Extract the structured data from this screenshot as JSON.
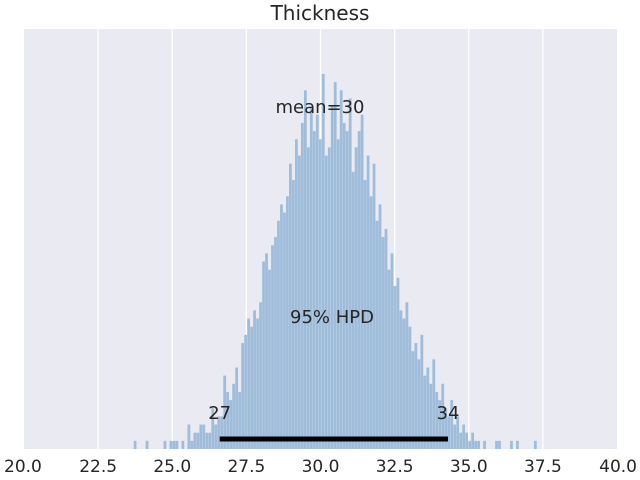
{
  "chart_data": {
    "type": "bar",
    "title": "Thickness",
    "xlabel": "",
    "ylabel": "",
    "xlim": [
      20.0,
      40.0
    ],
    "xticks": [
      "20.0",
      "22.5",
      "25.0",
      "27.5",
      "30.0",
      "32.5",
      "35.0",
      "37.5",
      "40.0"
    ],
    "xtick_values": [
      20.0,
      22.5,
      25.0,
      27.5,
      30.0,
      32.5,
      35.0,
      37.5,
      40.0
    ],
    "grid": true,
    "y_axis_visible": false,
    "bin_range": [
      23.7,
      37.3
    ],
    "counts": [
      1,
      0,
      0,
      0,
      1,
      0,
      0,
      0,
      0,
      0,
      1,
      0,
      1,
      1,
      1,
      0,
      1,
      0,
      3,
      1,
      2,
      2,
      3,
      3,
      2,
      2,
      5,
      3,
      4,
      4,
      9,
      7,
      6,
      8,
      10,
      7,
      13,
      14,
      16,
      15,
      17,
      16,
      18,
      23,
      24,
      22,
      25,
      26,
      28,
      30,
      29,
      31,
      35,
      33,
      38,
      36,
      40,
      44,
      37,
      42,
      39,
      41,
      38,
      46,
      36,
      37,
      42,
      45,
      38,
      44,
      40,
      39,
      43,
      34,
      37,
      39,
      41,
      33,
      36,
      31,
      35,
      28,
      30,
      26,
      27,
      22,
      24,
      20,
      21,
      17,
      16,
      18,
      15,
      12,
      13,
      11,
      14,
      9,
      10,
      8,
      11,
      7,
      6,
      8,
      5,
      4,
      6,
      3,
      4,
      2,
      3,
      2,
      1,
      2,
      1,
      1,
      0,
      1,
      0,
      0,
      0,
      1,
      1,
      0,
      0,
      0,
      1,
      0,
      1,
      0,
      0,
      0,
      0,
      0,
      1
    ],
    "color": "#92b5d6",
    "hpd": {
      "low": 26.6,
      "high": 34.3,
      "low_label": "27",
      "high_label": "34",
      "label": "95% HPD"
    },
    "mean_label": "mean=30"
  },
  "colors": {
    "background": "#eaeaf2",
    "grid": "#ffffff",
    "bar": "#92b5d6",
    "hpd_line": "#000000"
  }
}
